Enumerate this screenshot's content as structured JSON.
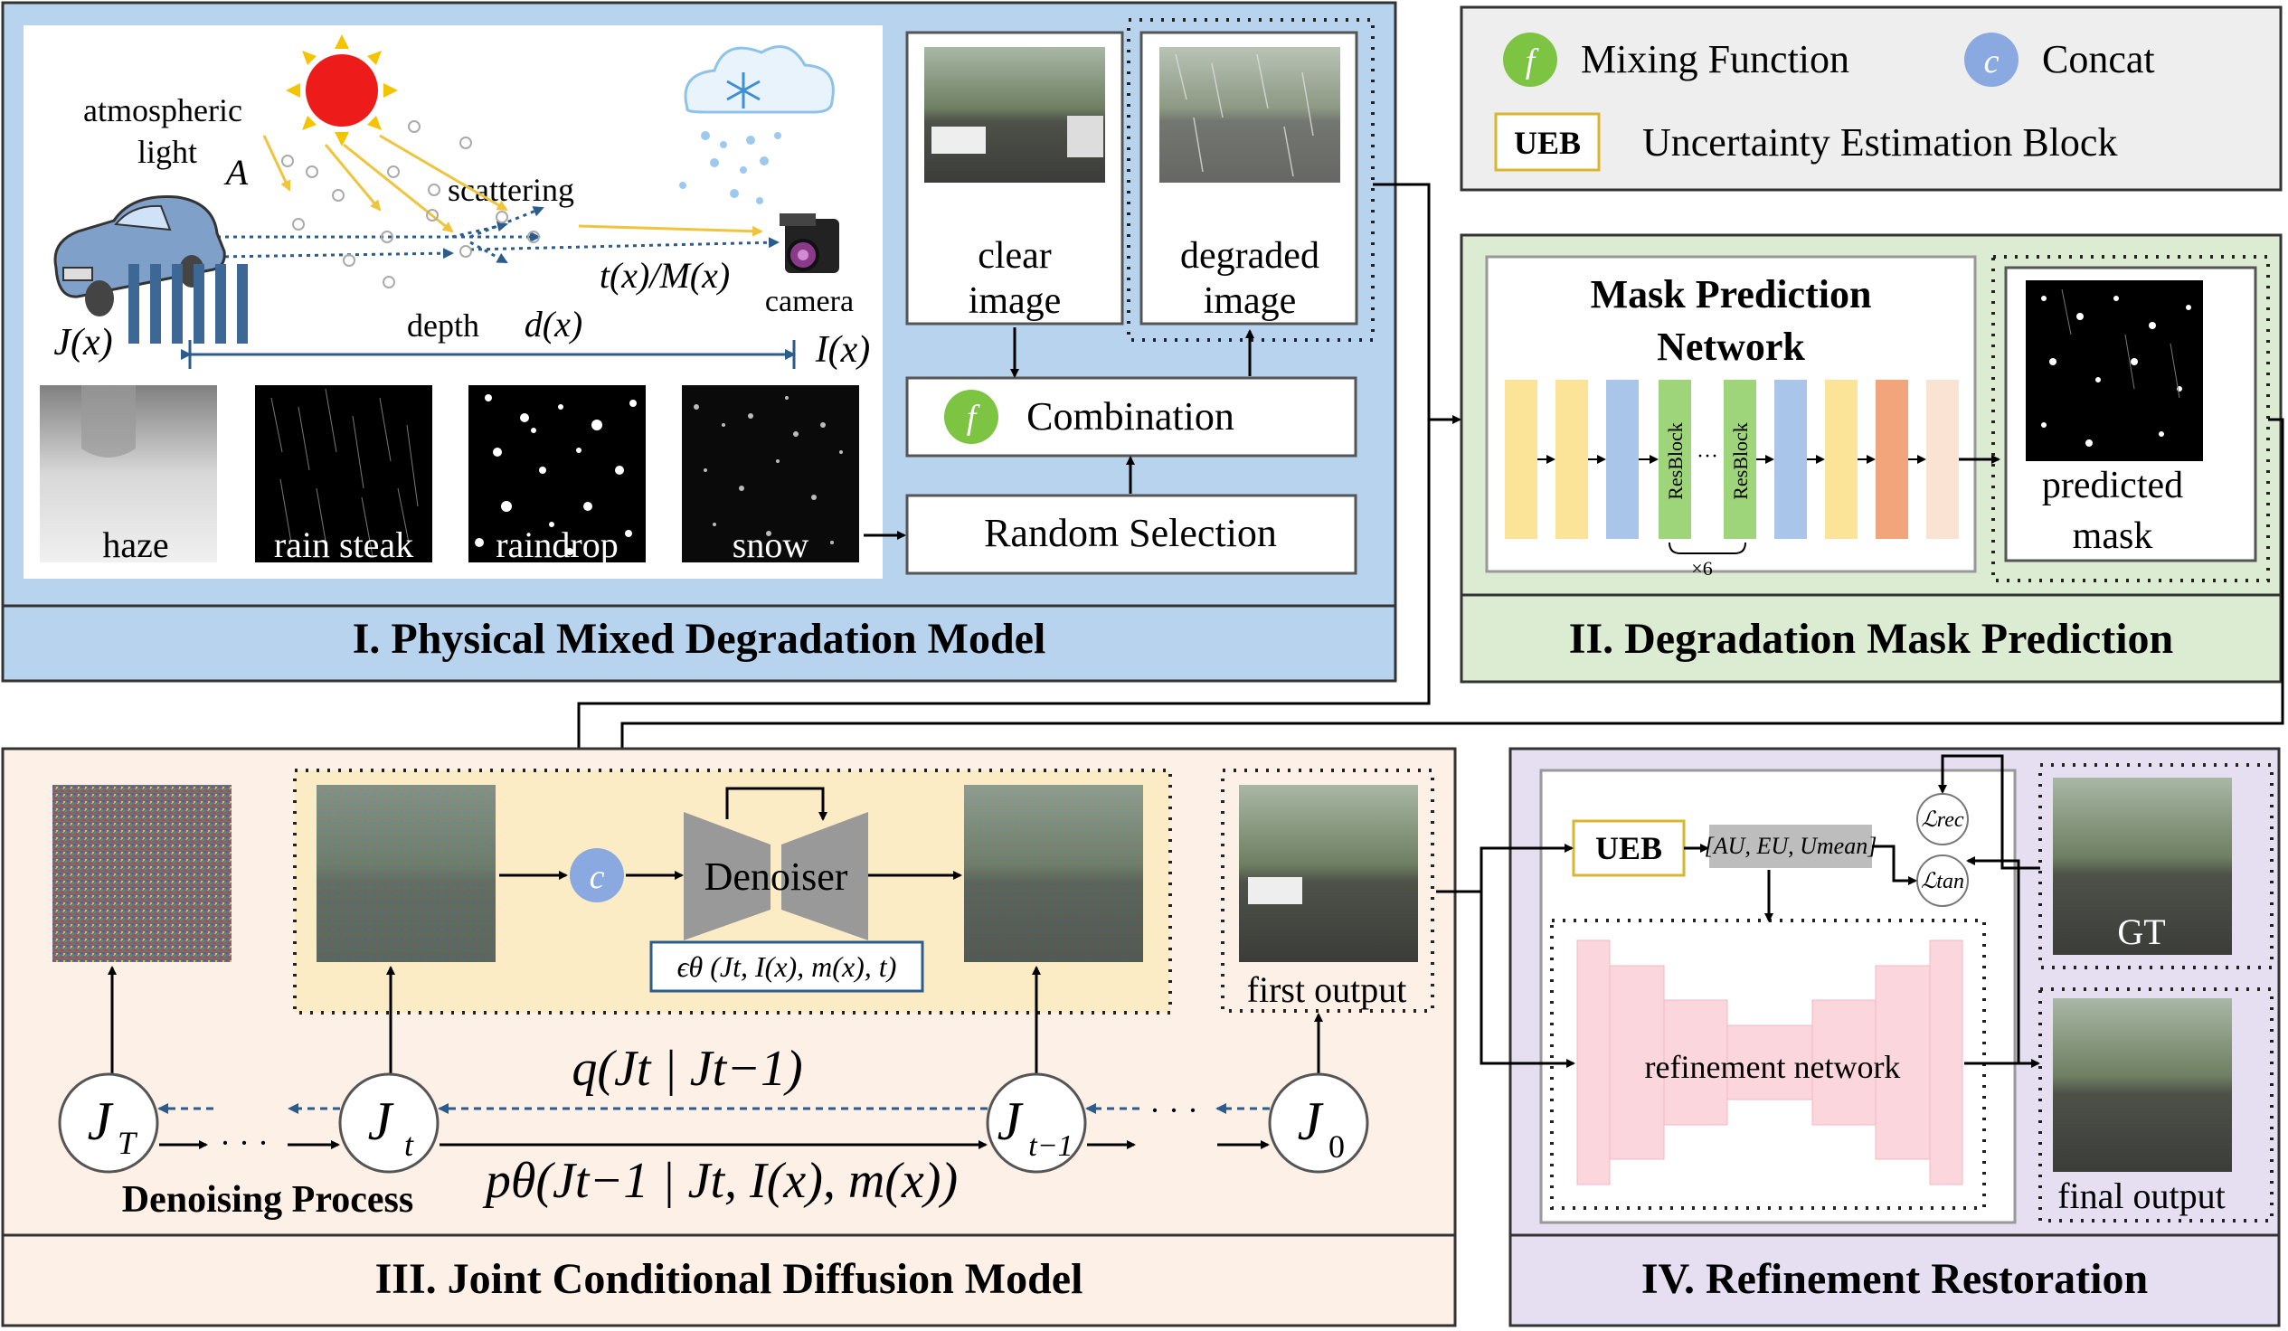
{
  "legend": {
    "mixing_symbol": "f",
    "mixing_label": "Mixing Function",
    "concat_symbol": "c",
    "concat_label": "Concat",
    "ueb_tag": "UEB",
    "ueb_label": "Uncertainty Estimation Block"
  },
  "panel1": {
    "title": "I. Physical Mixed Degradation Model",
    "atmo_line1": "atmospheric",
    "atmo_line2": "light",
    "atmo_symbol": "A",
    "scattering": "scattering",
    "transmission": "t(x)/M(x)",
    "camera": "camera",
    "depth": "depth",
    "depth_symbol": "d(x)",
    "jx": "J(x)",
    "ix": "I(x)",
    "thumbs": [
      "haze",
      "rain steak",
      "raindrop",
      "snow"
    ],
    "clear_line1": "clear",
    "clear_line2": "image",
    "degraded_line1": "degraded",
    "degraded_line2": "image",
    "combination": "Combination",
    "random_selection": "Random Selection"
  },
  "panel2": {
    "title": "II. Degradation Mask Prediction",
    "network_line1": "Mask Prediction",
    "network_line2": "Network",
    "resblock": "ResBlock",
    "dots": "···",
    "times6": "×6",
    "pred_line1": "predicted",
    "pred_line2": "mask"
  },
  "panel3": {
    "title": "III. Joint Conditional Diffusion Model",
    "denoiser": "Denoiser",
    "eps_formula": "ϵθ (Jt, I(x), m(x), t)",
    "first_output": "first output",
    "forward_q": "q(Jt | Jt−1)",
    "reverse_p": "pθ(Jt−1 | Jt, I(x), m(x))",
    "denoising_process": "Denoising Process",
    "node_T": "J",
    "node_T_sub": "T",
    "node_t": "J",
    "node_t_sub": "t",
    "node_tm1": "J",
    "node_tm1_sub": "t−1",
    "node_0": "J",
    "node_0_sub": "0",
    "ellipsis": "· · ·"
  },
  "panel4": {
    "title": "IV. Refinement Restoration",
    "ueb": "UEB",
    "uncertainty": "[AU, EU, Umean]",
    "l_rec": "ℒrec",
    "l_tan": "ℒtan",
    "refinement": "refinement network",
    "gt": "GT",
    "final_output": "final output"
  },
  "colors": {
    "panel1_bg": "#b7d3ee",
    "panel2_bg": "#dcecd2",
    "panel3_bg": "#fdf0e6",
    "panel3_inner": "#fbecc5",
    "panel4_bg": "#e6dff1",
    "legend_bg": "#eeeeee",
    "mixing_green": "#7cc441",
    "concat_blue": "#8aa9e0",
    "ueb_border": "#d9b531",
    "mask_yellow": "#fbe397",
    "mask_blue": "#a9c6ea",
    "mask_green": "#9fd57a",
    "mask_orange": "#f2a57b",
    "mask_peach": "#fbe3d4",
    "refine_pink": "#fbd6dd",
    "arrow_blue": "#2c5c8c",
    "sun_red": "#ee1b1b",
    "sun_ray": "#f5c400"
  }
}
